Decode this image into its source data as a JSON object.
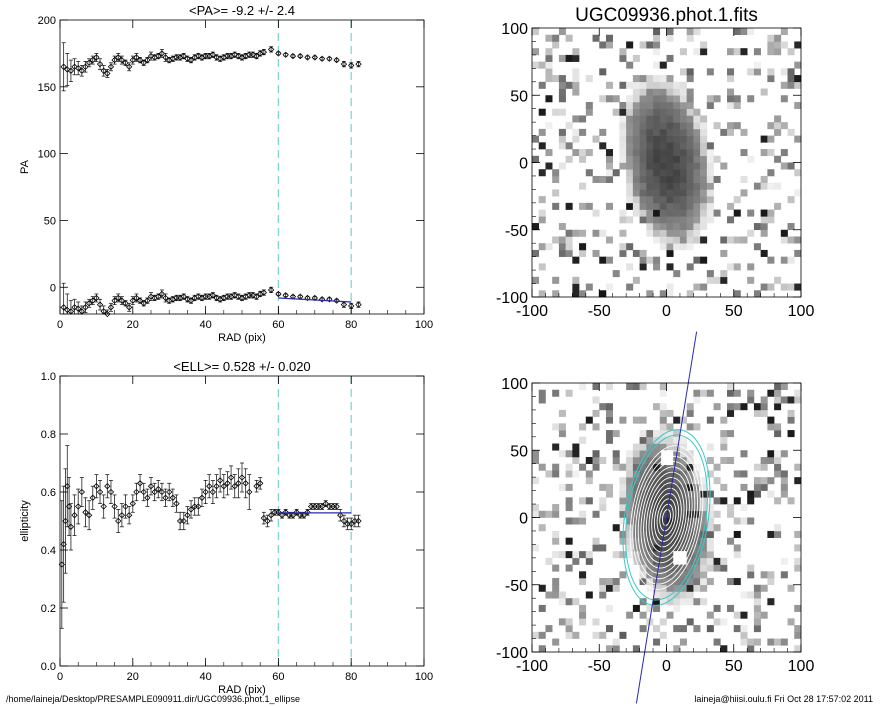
{
  "footer": {
    "path": "/home/laineja/Desktop/PRESAMPLE090911.dir/UGC09936.phot.1_ellipse",
    "stamp": "laineja@hiisi.oulu.fi  Fri Oct 28 17:57:02 2011"
  },
  "colors": {
    "guide": "#7fd6d6",
    "fit": "#2b2ba8",
    "contour": "#ffffff",
    "contour_outer": "#3ec7c7"
  },
  "chart_data": [
    {
      "type": "scatter",
      "title": "<PA>=  -9.2 +/-   2.4",
      "xlabel": "RAD (pix)",
      "ylabel": "PA",
      "xlim": [
        0,
        100
      ],
      "ylim": [
        -20,
        200
      ],
      "xticks": [
        "0",
        "20",
        "40",
        "60",
        "80",
        "100"
      ],
      "yticks": [
        "0",
        "50",
        "100",
        "150",
        "200"
      ],
      "vlines": [
        60,
        80
      ],
      "fit_line": {
        "x": [
          60,
          80
        ],
        "y": [
          -8,
          -11
        ]
      },
      "series": [
        {
          "x": [
            1,
            2,
            3,
            4,
            5,
            6,
            7,
            8,
            9,
            10,
            11,
            12,
            13,
            14,
            15,
            16,
            17,
            18,
            19,
            20,
            21,
            22,
            23,
            24,
            25,
            26,
            27,
            28,
            29,
            30,
            31,
            32,
            33,
            34,
            35,
            36,
            37,
            38,
            39,
            40,
            41,
            42,
            43,
            44,
            45,
            46,
            47,
            48,
            49,
            50,
            51,
            52,
            53,
            54,
            55,
            56,
            58,
            60,
            62,
            64,
            66,
            68,
            70,
            72,
            74,
            76,
            78,
            80,
            82
          ],
          "y": [
            165,
            163,
            162,
            165,
            164,
            162,
            165,
            168,
            170,
            172,
            167,
            162,
            160,
            165,
            170,
            172,
            170,
            168,
            165,
            170,
            172,
            170,
            168,
            170,
            173,
            172,
            173,
            175,
            172,
            170,
            171,
            172,
            172,
            173,
            171,
            170,
            172,
            173,
            172,
            173,
            173,
            174,
            172,
            171,
            172,
            173,
            173,
            174,
            173,
            172,
            173,
            174,
            174,
            173,
            175,
            176,
            178,
            175,
            174,
            173,
            173,
            172,
            172,
            171,
            171,
            170,
            167,
            166,
            167
          ],
          "err": [
            18,
            12,
            8,
            6,
            5,
            4,
            4,
            3,
            3,
            3,
            4,
            4,
            3,
            3,
            3,
            3,
            3,
            2,
            3,
            3,
            3,
            2,
            2,
            2,
            3,
            2,
            2,
            3,
            3,
            2,
            2,
            2,
            2,
            2,
            2,
            2,
            2,
            2,
            2,
            2,
            2,
            2,
            2,
            2,
            2,
            2,
            2,
            2,
            2,
            2,
            2,
            2,
            2,
            2,
            2,
            2,
            2,
            1,
            1,
            1,
            1,
            1,
            1,
            1,
            1,
            1,
            2,
            2,
            2
          ]
        },
        {
          "x": [
            1,
            2,
            3,
            4,
            5,
            6,
            7,
            8,
            9,
            10,
            11,
            12,
            13,
            14,
            15,
            16,
            17,
            18,
            19,
            20,
            21,
            22,
            23,
            24,
            25,
            26,
            27,
            28,
            29,
            30,
            31,
            32,
            33,
            34,
            35,
            36,
            37,
            38,
            39,
            40,
            41,
            42,
            43,
            44,
            45,
            46,
            47,
            48,
            49,
            50,
            51,
            52,
            53,
            54,
            55,
            56,
            58,
            60,
            62,
            64,
            66,
            68,
            70,
            72,
            74,
            76,
            78,
            80,
            82
          ],
          "y": [
            -15,
            -17,
            -18,
            -15,
            -16,
            -18,
            -15,
            -12,
            -10,
            -8,
            -13,
            -18,
            -20,
            -15,
            -10,
            -8,
            -10,
            -12,
            -15,
            -10,
            -8,
            -10,
            -12,
            -10,
            -7,
            -8,
            -7,
            -5,
            -8,
            -10,
            -9,
            -8,
            -8,
            -7,
            -9,
            -10,
            -8,
            -7,
            -8,
            -7,
            -7,
            -6,
            -8,
            -9,
            -8,
            -7,
            -7,
            -6,
            -7,
            -8,
            -7,
            -6,
            -6,
            -7,
            -5,
            -4,
            -2,
            -5,
            -6,
            -7,
            -7,
            -8,
            -8,
            -9,
            -9,
            -10,
            -13,
            -14,
            -13
          ],
          "err": [
            18,
            12,
            8,
            6,
            5,
            4,
            4,
            3,
            3,
            3,
            4,
            4,
            3,
            3,
            3,
            3,
            3,
            2,
            3,
            3,
            3,
            2,
            2,
            2,
            3,
            2,
            2,
            3,
            3,
            2,
            2,
            2,
            2,
            2,
            2,
            2,
            2,
            2,
            2,
            2,
            2,
            2,
            2,
            2,
            2,
            2,
            2,
            2,
            2,
            2,
            2,
            2,
            2,
            2,
            2,
            2,
            2,
            1,
            1,
            1,
            1,
            1,
            1,
            1,
            1,
            1,
            2,
            2,
            2
          ]
        }
      ]
    },
    {
      "type": "scatter",
      "title": "<ELL>= 0.528 +/-  0.020",
      "xlabel": "RAD (pix)",
      "ylabel": "ellipticity",
      "xlim": [
        0,
        100
      ],
      "ylim": [
        0,
        1
      ],
      "xticks": [
        "0",
        "20",
        "40",
        "60",
        "80",
        "100"
      ],
      "yticks": [
        "0.0",
        "0.2",
        "0.4",
        "0.6",
        "0.8",
        "1.0"
      ],
      "vlines": [
        60,
        80
      ],
      "fit_line": {
        "x": [
          60,
          80
        ],
        "y": [
          0.528,
          0.528
        ]
      },
      "series": [
        {
          "x": [
            0.5,
            1,
            1.5,
            2,
            2.5,
            3,
            4,
            5,
            6,
            7,
            8,
            9,
            10,
            11,
            12,
            13,
            14,
            15,
            16,
            17,
            18,
            19,
            20,
            21,
            22,
            23,
            24,
            25,
            26,
            27,
            28,
            29,
            30,
            31,
            32,
            33,
            34,
            35,
            36,
            37,
            38,
            39,
            40,
            41,
            42,
            43,
            44,
            45,
            46,
            47,
            48,
            49,
            50,
            51,
            52,
            54,
            55,
            56,
            57,
            58,
            59,
            60,
            61,
            62,
            63,
            64,
            65,
            66,
            67,
            68,
            69,
            70,
            71,
            72,
            73,
            74,
            75,
            76,
            77,
            78,
            79,
            80,
            81,
            82
          ],
          "y": [
            0.35,
            0.42,
            0.5,
            0.62,
            0.55,
            0.48,
            0.52,
            0.55,
            0.6,
            0.53,
            0.52,
            0.58,
            0.62,
            0.6,
            0.55,
            0.62,
            0.6,
            0.55,
            0.5,
            0.52,
            0.55,
            0.52,
            0.56,
            0.6,
            0.63,
            0.6,
            0.58,
            0.62,
            0.6,
            0.61,
            0.6,
            0.58,
            0.6,
            0.58,
            0.56,
            0.5,
            0.5,
            0.52,
            0.54,
            0.55,
            0.55,
            0.58,
            0.6,
            0.62,
            0.6,
            0.62,
            0.64,
            0.62,
            0.63,
            0.65,
            0.62,
            0.63,
            0.65,
            0.63,
            0.6,
            0.62,
            0.63,
            0.51,
            0.5,
            0.52,
            0.53,
            0.53,
            0.52,
            0.53,
            0.52,
            0.52,
            0.53,
            0.52,
            0.52,
            0.53,
            0.55,
            0.55,
            0.55,
            0.55,
            0.56,
            0.55,
            0.55,
            0.55,
            0.52,
            0.5,
            0.49,
            0.49,
            0.5,
            0.5
          ],
          "err": [
            0.22,
            0.2,
            0.18,
            0.14,
            0.1,
            0.08,
            0.07,
            0.06,
            0.05,
            0.05,
            0.05,
            0.04,
            0.04,
            0.04,
            0.04,
            0.04,
            0.04,
            0.04,
            0.04,
            0.04,
            0.04,
            0.03,
            0.03,
            0.03,
            0.03,
            0.03,
            0.03,
            0.03,
            0.03,
            0.03,
            0.03,
            0.03,
            0.03,
            0.03,
            0.03,
            0.03,
            0.03,
            0.03,
            0.03,
            0.03,
            0.03,
            0.03,
            0.04,
            0.04,
            0.04,
            0.04,
            0.04,
            0.04,
            0.04,
            0.04,
            0.04,
            0.05,
            0.05,
            0.05,
            0.06,
            0.02,
            0.02,
            0.02,
            0.02,
            0.02,
            0.01,
            0.01,
            0.01,
            0.01,
            0.01,
            0.01,
            0.01,
            0.01,
            0.01,
            0.01,
            0.01,
            0.01,
            0.01,
            0.01,
            0.01,
            0.01,
            0.01,
            0.01,
            0.02,
            0.02,
            0.02,
            0.02,
            0.02,
            0.02
          ]
        }
      ]
    },
    {
      "type": "heatmap",
      "title": "UGC09936.phot.1.fits",
      "xlim": [
        -100,
        100
      ],
      "ylim": [
        -100,
        100
      ],
      "xticks": [
        "-100",
        "-50",
        "0",
        "50",
        "100"
      ],
      "yticks": [
        "-100",
        "-50",
        "0",
        "50",
        "100"
      ]
    },
    {
      "type": "heatmap",
      "title": "",
      "xlim": [
        -100,
        100
      ],
      "ylim": [
        -100,
        100
      ],
      "xticks": [
        "-100",
        "-50",
        "0",
        "50",
        "100"
      ],
      "yticks": [
        "-100",
        "-50",
        "0",
        "50",
        "100"
      ],
      "major_axis_pa_deg": -9.2,
      "ellipticity": 0.528
    }
  ]
}
